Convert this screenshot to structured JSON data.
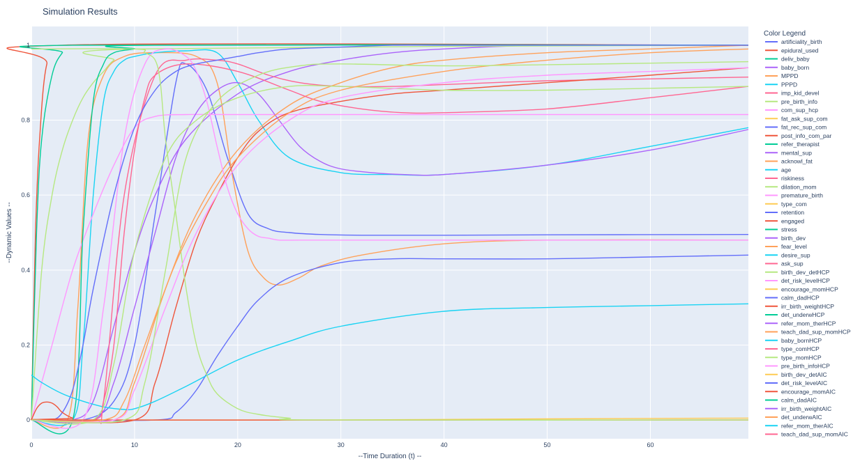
{
  "chart_data": {
    "type": "line",
    "title": "Simulation Results",
    "xlabel": "--Time Duration (t) --",
    "ylabel": "--Dynamic Values --",
    "xlim": [
      0,
      69.5
    ],
    "ylim": [
      -0.05,
      1.05
    ],
    "xticks": [
      "0",
      "10",
      "20",
      "30",
      "40",
      "50",
      "60"
    ],
    "yticks": [
      "0",
      "0.2",
      "0.4",
      "0.6",
      "0.8",
      "1"
    ],
    "grid": true,
    "legend_title": "Color Legend",
    "legend_position": "right",
    "legend_entries": [
      {
        "name": "artificiality_birth",
        "color": "#636efa"
      },
      {
        "name": "epidural_used",
        "color": "#ef553b"
      },
      {
        "name": "deliv_baby",
        "color": "#00cc96"
      },
      {
        "name": "baby_born",
        "color": "#ab63fa"
      },
      {
        "name": "MPPD",
        "color": "#ffa15a"
      },
      {
        "name": "PPPD",
        "color": "#19d3f3"
      },
      {
        "name": "imp_kid_devel",
        "color": "#ff6692"
      },
      {
        "name": "pre_birth_info",
        "color": "#b6e880"
      },
      {
        "name": "com_sup_hcp",
        "color": "#ff97ff"
      },
      {
        "name": "fat_ask_sup_com",
        "color": "#fecb52"
      },
      {
        "name": "fat_rec_sup_com",
        "color": "#636efa"
      },
      {
        "name": "post_info_com_par",
        "color": "#ef553b"
      },
      {
        "name": "refer_therapist",
        "color": "#00cc96"
      },
      {
        "name": "mental_sup",
        "color": "#ab63fa"
      },
      {
        "name": "acknowl_fat",
        "color": "#ffa15a"
      },
      {
        "name": "age",
        "color": "#19d3f3"
      },
      {
        "name": "riskiness",
        "color": "#ff6692"
      },
      {
        "name": "dilation_mom",
        "color": "#b6e880"
      },
      {
        "name": "premature_birth",
        "color": "#ff97ff"
      },
      {
        "name": "type_com",
        "color": "#fecb52"
      },
      {
        "name": "retention",
        "color": "#636efa"
      },
      {
        "name": "engaged",
        "color": "#ef553b"
      },
      {
        "name": "stress",
        "color": "#00cc96"
      },
      {
        "name": "birth_dev",
        "color": "#ab63fa"
      },
      {
        "name": "fear_level",
        "color": "#ffa15a"
      },
      {
        "name": "desire_sup",
        "color": "#19d3f3"
      },
      {
        "name": "ask_sup",
        "color": "#ff6692"
      },
      {
        "name": "birth_dev_detHCP",
        "color": "#b6e880"
      },
      {
        "name": "det_risk_levelHCP",
        "color": "#ff97ff"
      },
      {
        "name": "encourage_momHCP",
        "color": "#fecb52"
      },
      {
        "name": "calm_dadHCP",
        "color": "#636efa"
      },
      {
        "name": "irr_birth_weightHCP",
        "color": "#ef553b"
      },
      {
        "name": "det_underwHCP",
        "color": "#00cc96"
      },
      {
        "name": "refer_mom_therHCP",
        "color": "#ab63fa"
      },
      {
        "name": "teach_dad_sup_momHCP",
        "color": "#ffa15a"
      },
      {
        "name": "baby_bornHCP",
        "color": "#19d3f3"
      },
      {
        "name": "type_comHCP",
        "color": "#ff6692"
      },
      {
        "name": "type_momHCP",
        "color": "#b6e880"
      },
      {
        "name": "pre_birth_infoHCP",
        "color": "#ff97ff"
      },
      {
        "name": "birth_dev_detAIC",
        "color": "#fecb52"
      },
      {
        "name": "det_risk_levelAIC",
        "color": "#636efa"
      },
      {
        "name": "encourage_momAIC",
        "color": "#ef553b"
      },
      {
        "name": "calm_dadAIC",
        "color": "#00cc96"
      },
      {
        "name": "irr_birth_weightAIC",
        "color": "#ab63fa"
      },
      {
        "name": "det_underwAIC",
        "color": "#ffa15a"
      },
      {
        "name": "refer_mom_therAIC",
        "color": "#19d3f3"
      },
      {
        "name": "teach_dad_sup_momAIC",
        "color": "#ff6692"
      }
    ],
    "series": [
      {
        "name": "artificiality_birth",
        "color": "#636efa",
        "x": [
          0,
          5,
          8,
          10,
          12,
          14,
          15,
          17,
          19,
          21,
          23,
          25,
          28,
          32,
          40,
          50,
          69.5
        ],
        "y": [
          0,
          0,
          0.05,
          0.2,
          0.55,
          0.9,
          0.95,
          0.88,
          0.7,
          0.55,
          0.51,
          0.5,
          0.495,
          0.493,
          0.493,
          0.494,
          0.495
        ]
      },
      {
        "name": "epidural_used",
        "color": "#ef553b",
        "x": [
          0,
          0.4,
          0.8,
          1.5,
          3,
          69.5
        ],
        "y": [
          0,
          0.5,
          0.75,
          0.95,
          1,
          1
        ]
      },
      {
        "name": "deliv_baby",
        "color": "#00cc96",
        "x": [
          0,
          0.5,
          1,
          2,
          3,
          4,
          69.5
        ],
        "y": [
          0,
          0.5,
          0.75,
          0.92,
          0.98,
          1,
          1
        ]
      },
      {
        "name": "baby_born",
        "color": "#ab63fa",
        "x": [
          0,
          4,
          6,
          8,
          10,
          12,
          15,
          20,
          25,
          30,
          35,
          40,
          50,
          69.5
        ],
        "y": [
          0,
          0,
          0.05,
          0.25,
          0.45,
          0.6,
          0.75,
          0.87,
          0.93,
          0.96,
          0.98,
          0.99,
          1,
          1
        ]
      },
      {
        "name": "MPPD",
        "color": "#ffa15a",
        "x": [
          0,
          3.5,
          4.5,
          5.5,
          7,
          9,
          12,
          16,
          18,
          19.5,
          21,
          22.5,
          24,
          26,
          28,
          32,
          40,
          50,
          69.5
        ],
        "y": [
          0,
          0,
          0.3,
          0.75,
          0.92,
          0.97,
          0.98,
          0.97,
          0.9,
          0.65,
          0.45,
          0.38,
          0.36,
          0.38,
          0.41,
          0.44,
          0.47,
          0.48,
          0.48
        ]
      },
      {
        "name": "PPPD",
        "color": "#19d3f3",
        "x": [
          0,
          4,
          5,
          6,
          7,
          8,
          9,
          10,
          12,
          15,
          18,
          20,
          22,
          25,
          30,
          35,
          40,
          50,
          60,
          69.5
        ],
        "y": [
          0,
          0,
          0.2,
          0.6,
          0.85,
          0.93,
          0.96,
          0.97,
          0.98,
          0.985,
          0.98,
          0.9,
          0.8,
          0.7,
          0.66,
          0.655,
          0.655,
          0.68,
          0.73,
          0.78
        ]
      },
      {
        "name": "imp_kid_devel",
        "color": "#ff6692",
        "x": [
          0,
          6,
          7,
          9,
          12,
          15,
          18,
          20,
          23,
          26,
          30,
          35,
          40,
          50,
          60,
          69.5
        ],
        "y": [
          0,
          0,
          0.05,
          0.6,
          0.92,
          0.96,
          0.96,
          0.95,
          0.92,
          0.9,
          0.89,
          0.89,
          0.895,
          0.905,
          0.91,
          0.915
        ]
      },
      {
        "name": "pre_birth_info",
        "color": "#b6e880",
        "x": [
          0,
          1,
          2,
          3,
          4,
          5,
          6,
          7,
          8,
          10,
          69.5
        ],
        "y": [
          0,
          0.4,
          0.6,
          0.72,
          0.8,
          0.86,
          0.9,
          0.93,
          0.96,
          0.99,
          1
        ]
      },
      {
        "name": "com_sup_hcp",
        "color": "#ff97ff",
        "x": [
          0,
          2,
          4,
          6,
          8,
          10,
          12,
          15,
          20,
          30,
          40,
          50,
          69.5
        ],
        "y": [
          0,
          0.2,
          0.4,
          0.55,
          0.68,
          0.78,
          0.81,
          0.815,
          0.815,
          0.815,
          0.815,
          0.815,
          0.815
        ]
      },
      {
        "name": "fat_ask_sup_com",
        "color": "#fecb52",
        "x": [
          0,
          30,
          50,
          69.5
        ],
        "y": [
          0,
          0,
          0.003,
          0.005
        ]
      },
      {
        "name": "fat_rec_sup_com",
        "color": "#636efa",
        "x": [
          0,
          12,
          14,
          16,
          18,
          20,
          22,
          25,
          30,
          35,
          40,
          50,
          60,
          69.5
        ],
        "y": [
          0,
          0,
          0.02,
          0.08,
          0.17,
          0.25,
          0.32,
          0.38,
          0.42,
          0.43,
          0.43,
          0.43,
          0.435,
          0.44
        ]
      },
      {
        "name": "post_info_com_par",
        "color": "#ef553b",
        "x": [
          0,
          10,
          12,
          14,
          16,
          18,
          20,
          22,
          25,
          30,
          35,
          40,
          50,
          60,
          69.5
        ],
        "y": [
          0,
          0,
          0.1,
          0.3,
          0.48,
          0.6,
          0.7,
          0.77,
          0.82,
          0.85,
          0.87,
          0.88,
          0.9,
          0.92,
          0.94
        ]
      },
      {
        "name": "refer_therapist",
        "color": "#00cc96",
        "x": [
          0,
          4,
          5,
          6,
          7,
          8,
          10,
          12,
          69.5
        ],
        "y": [
          0,
          0,
          0.5,
          0.85,
          0.95,
          0.98,
          0.99,
          1,
          1
        ]
      },
      {
        "name": "mental_sup",
        "color": "#ab63fa",
        "x": [
          0,
          6,
          8,
          10,
          12,
          14,
          16,
          18,
          20,
          22,
          24,
          26,
          28,
          30,
          33,
          36,
          40,
          50,
          60,
          69.5
        ],
        "y": [
          0,
          0,
          0.1,
          0.3,
          0.5,
          0.7,
          0.82,
          0.88,
          0.9,
          0.87,
          0.8,
          0.73,
          0.69,
          0.67,
          0.66,
          0.655,
          0.655,
          0.68,
          0.72,
          0.775
        ]
      },
      {
        "name": "acknowl_fat",
        "color": "#ffa15a",
        "x": [
          0,
          8,
          10,
          13,
          16,
          20,
          25,
          30,
          35,
          40,
          50,
          60,
          69.5
        ],
        "y": [
          0,
          0,
          0.1,
          0.35,
          0.55,
          0.72,
          0.84,
          0.9,
          0.94,
          0.96,
          0.98,
          0.99,
          1
        ]
      },
      {
        "name": "age",
        "color": "#19d3f3",
        "x": [
          0,
          1,
          3,
          5,
          7,
          9,
          10,
          12,
          15,
          20,
          25,
          30,
          40,
          50,
          60,
          69.5
        ],
        "y": [
          0.12,
          0.1,
          0.07,
          0.05,
          0.035,
          0.028,
          0.03,
          0.05,
          0.09,
          0.16,
          0.21,
          0.25,
          0.29,
          0.3,
          0.305,
          0.31
        ]
      },
      {
        "name": "riskiness",
        "color": "#ff6692",
        "x": [
          0,
          6,
          7,
          8,
          9,
          10,
          11,
          12,
          15,
          20,
          25,
          28,
          32,
          36,
          40,
          50,
          60,
          69.5
        ],
        "y": [
          0,
          0,
          0.05,
          0.2,
          0.5,
          0.72,
          0.86,
          0.92,
          0.95,
          0.93,
          0.88,
          0.85,
          0.83,
          0.82,
          0.82,
          0.83,
          0.86,
          0.89
        ]
      },
      {
        "name": "dilation_mom",
        "color": "#b6e880",
        "x": [
          0,
          6,
          8,
          10,
          13,
          16,
          20,
          25,
          30,
          40,
          50,
          60,
          69.5
        ],
        "y": [
          0,
          0,
          0.15,
          0.45,
          0.7,
          0.8,
          0.86,
          0.89,
          0.89,
          0.88,
          0.88,
          0.885,
          0.89
        ]
      },
      {
        "name": "premature_birth",
        "color": "#ff97ff",
        "x": [
          0,
          5,
          7,
          9,
          11,
          13,
          15,
          16,
          17,
          18,
          19,
          20,
          21,
          22,
          23,
          24,
          26,
          30,
          40,
          50,
          69.5
        ],
        "y": [
          0,
          0,
          0.3,
          0.75,
          0.95,
          0.99,
          0.97,
          0.93,
          0.85,
          0.73,
          0.62,
          0.55,
          0.51,
          0.49,
          0.485,
          0.48,
          0.48,
          0.48,
          0.48,
          0.48,
          0.48
        ]
      },
      {
        "name": "type_com",
        "color": "#fecb52",
        "x": [
          0,
          69.5
        ],
        "y": [
          0,
          0
        ]
      },
      {
        "name": "retention",
        "color": "#636efa",
        "x": [
          0,
          2,
          3,
          4,
          5,
          6,
          8,
          10,
          12,
          14,
          16,
          18,
          20,
          22,
          25,
          30,
          35,
          40,
          50,
          60,
          69.5
        ],
        "y": [
          0,
          0,
          0.02,
          0.08,
          0.2,
          0.35,
          0.6,
          0.78,
          0.88,
          0.93,
          0.95,
          0.96,
          0.97,
          0.98,
          0.99,
          0.995,
          1,
          1,
          1,
          1,
          1
        ]
      },
      {
        "name": "engaged",
        "color": "#ef553b",
        "x": [
          0,
          0.5,
          1,
          1.5,
          2,
          2.5,
          3,
          4,
          5,
          69.5
        ],
        "y": [
          0,
          0.03,
          0.045,
          0.048,
          0.045,
          0.035,
          0.02,
          0.005,
          0,
          0
        ]
      },
      {
        "name": "type_momHCP",
        "color": "#b6e880",
        "x": [
          0,
          10,
          11,
          12,
          12.5,
          13,
          14,
          15,
          16,
          17,
          18,
          20,
          22,
          25,
          28,
          69.5
        ],
        "y": [
          0.99,
          0.99,
          0.98,
          0.96,
          0.9,
          0.75,
          0.55,
          0.35,
          0.2,
          0.12,
          0.07,
          0.03,
          0.015,
          0.005,
          0,
          0
        ]
      },
      {
        "name": "teach_dad_sup_momHCP",
        "color": "#ffa15a",
        "x": [
          0,
          7,
          9,
          11,
          14,
          17,
          20,
          25,
          30,
          40,
          50,
          60,
          69.5
        ],
        "y": [
          0,
          0,
          0.05,
          0.2,
          0.42,
          0.58,
          0.7,
          0.82,
          0.88,
          0.93,
          0.96,
          0.98,
          0.99
        ]
      },
      {
        "name": "pre_birth_infoHCP",
        "color": "#ff97ff",
        "x": [
          0,
          8,
          10,
          13,
          16,
          20,
          25,
          30,
          40,
          50,
          60,
          69.5
        ],
        "y": [
          0,
          0,
          0.08,
          0.3,
          0.5,
          0.68,
          0.8,
          0.86,
          0.9,
          0.92,
          0.93,
          0.94
        ]
      },
      {
        "name": "birth_dev_detHCP",
        "color": "#b6e880",
        "x": [
          0,
          9,
          11,
          13,
          15,
          18,
          22,
          26,
          30,
          40,
          50,
          60,
          69.5
        ],
        "y": [
          0,
          0,
          0.1,
          0.4,
          0.7,
          0.85,
          0.92,
          0.945,
          0.95,
          0.945,
          0.948,
          0.952,
          0.956
        ]
      }
    ]
  }
}
